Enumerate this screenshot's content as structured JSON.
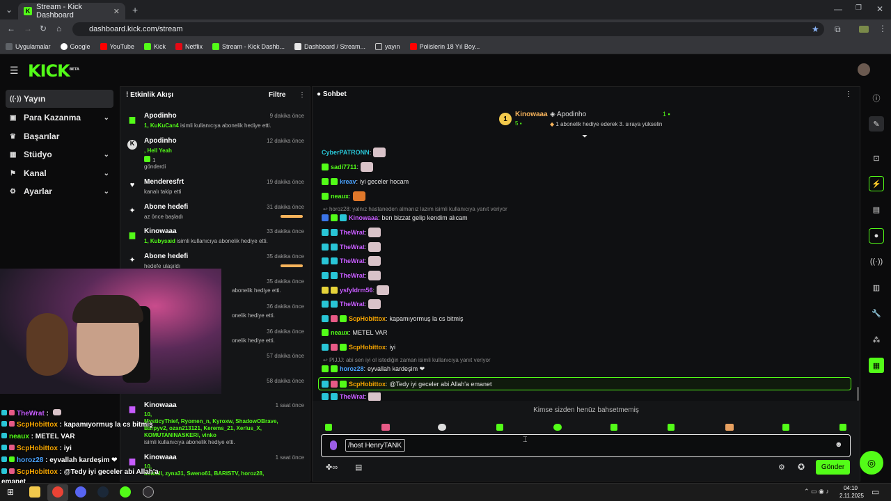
{
  "browser": {
    "tab_title": "Stream - Kick Dashboard",
    "url": "dashboard.kick.com/stream",
    "bookmarks": [
      "Uygulamalar",
      "Google",
      "YouTube",
      "Kick",
      "Netflix",
      "Stream - Kick Dashb...",
      "Dashboard / Stream...",
      "yayın",
      "Polislerin 18 Yıl Boy..."
    ]
  },
  "app": {
    "logo": "KICK",
    "logo_sup": "BETA"
  },
  "sidebar": {
    "items": [
      {
        "label": "Yayın",
        "icon": "((·))"
      },
      {
        "label": "Para Kazanma",
        "icon": "▣"
      },
      {
        "label": "Başarılar",
        "icon": "🏆"
      },
      {
        "label": "Stüdyo",
        "icon": "▦"
      },
      {
        "label": "Kanal",
        "icon": "⚑"
      },
      {
        "label": "Ayarlar",
        "icon": "⚙"
      }
    ]
  },
  "feed": {
    "title": "Etkinlik Akışı",
    "filter": "Filtre",
    "items": [
      {
        "name": "Apodinho",
        "time": "9 dakika önce",
        "line1_green": "1, KuKuCan4",
        "line1": " isimli kullanıcıya abonelik hediye etti."
      },
      {
        "name": "Apodinho",
        "time": "12 dakika önce",
        "line1_green": ", Hell Yeah",
        "line2": "1",
        "line3": "gönderdi"
      },
      {
        "name": "Menderesfrt",
        "time": "19 dakika önce",
        "line1": "kanalı takip etti"
      },
      {
        "name": "Abone hedefi",
        "time": "31 dakika önce",
        "line1": "az önce başladı"
      },
      {
        "name": "Kinowaaa",
        "time": "33 dakika önce",
        "line1_green": "1, Kubysaid",
        "line1": " isimli kullanıcıya abonelik hediye etti."
      },
      {
        "name": "Abone hedefi",
        "time": "35 dakika önce",
        "line1": "hedefe ulaşıldı"
      },
      {
        "time": "35 dakika önce",
        "line1": "abonelik hediye etti."
      },
      {
        "time": "36 dakika önce",
        "line1": "onelik hediye etti."
      },
      {
        "time": "36 dakika önce",
        "line1": "onelik hediye etti."
      },
      {
        "time": "57 dakika önce"
      },
      {
        "time": "58 dakika önce"
      },
      {
        "name": "Kinowaaa",
        "time": "1 saat önce",
        "line1_green": "10,",
        "line2_green": "MysticyThief, Ryomen_n, Kyroxw, ShadowOBrave,",
        "line3_green": "Barpyv2, ozan213121, Kerems_21, Xerlus_X,",
        "line4_green": "KOMUTANINASKERI, vinko",
        "line5": "isimli kullanıcıya abonelik hediye etti."
      },
      {
        "name": "Kinowaaa",
        "time": "1 saat önce",
        "line1_green": "10,",
        "line2_green": "abutall, zyna31, Sweno61, BARISTV, horoz28,"
      }
    ]
  },
  "chat": {
    "title": "Sohbet",
    "top_gifter": {
      "name": "Kinowaaa",
      "count": "5",
      "rank": "1"
    },
    "recent": {
      "name": "Apodinho",
      "count": "1",
      "text": "1 abonelik hediye ederek 3. sıraya yükselin"
    },
    "messages": [
      {
        "user": "CyberPATRONN",
        "color": "#29c5d6",
        "text": "",
        "emote": true
      },
      {
        "user": "sadi7711",
        "color": "#53fc18",
        "text": "",
        "emote": true
      },
      {
        "user": "kreav",
        "color": "#4aa3ff",
        "text": "iyi geceler hocam"
      },
      {
        "user": "neaux",
        "color": "#53fc18",
        "text": "",
        "emote": true
      },
      {
        "reply": "horoz28: yalnız hastaneden almanız lazım isimli kullanıcıya yanıt veriyor"
      },
      {
        "user": "Kinowaaa",
        "color": "#c75cff",
        "text": "ben bizzat gelip kendim alıcam"
      },
      {
        "user": "TheWrat",
        "color": "#c75cff",
        "text": "",
        "emote": true
      },
      {
        "user": "TheWrat",
        "color": "#c75cff",
        "text": "",
        "emote": true
      },
      {
        "user": "TheWrat",
        "color": "#c75cff",
        "text": "",
        "emote": true
      },
      {
        "user": "TheWrat",
        "color": "#c75cff",
        "text": "",
        "emote": true
      },
      {
        "user": "ysfyldrm56",
        "color": "#c75cff",
        "text": "",
        "emote": true
      },
      {
        "user": "TheWrat",
        "color": "#c75cff",
        "text": "",
        "emote": true
      },
      {
        "user": "ScpHobittox",
        "color": "#f7a600",
        "text": "kapamıyormuş la cs bitmiş"
      },
      {
        "user": "neaux",
        "color": "#53fc18",
        "text": "METEL VAR"
      },
      {
        "user": "ScpHobittox",
        "color": "#f7a600",
        "text": "iyi"
      },
      {
        "reply": "PIJJJ: abi sen iyi ol istediğin zaman isimli kullanıcıya yanıt veriyor"
      },
      {
        "user": "horoz28",
        "color": "#4aa3ff",
        "text": "eyvallah kardeşim ❤"
      },
      {
        "user": "ScpHobittox",
        "color": "#f7a600",
        "text": "@Tedy iyi geceler abi Allah'a emanet",
        "highlight": true
      },
      {
        "user": "TheWrat",
        "color": "#c75cff",
        "text": "",
        "emote": true
      }
    ],
    "mentions_empty": "Kimse sizden henüz bahsetmemiş",
    "input_value": "/host HenryTANK",
    "send_label": "Gönder"
  },
  "overlay": {
    "lines": [
      {
        "user": "TheWrat",
        "color": "#c75cff",
        "text": ""
      },
      {
        "user": "ScpHobittox",
        "color": "#f7a600",
        "text": "kapamıyormuş la cs bitmiş"
      },
      {
        "user": "neaux",
        "color": "#53fc18",
        "text": "METEL VAR"
      },
      {
        "user": "ScpHobittox",
        "color": "#f7a600",
        "text": "iyi"
      },
      {
        "user": "horoz28",
        "color": "#4aa3ff",
        "text": "eyvallah kardeşim ❤"
      },
      {
        "user": "ScpHobittox",
        "color": "#f7a600",
        "text": "@Tedy iyi geceler abi Allah'a"
      },
      {
        "user": "",
        "color": "#fff",
        "text": "emanet"
      }
    ]
  },
  "taskbar": {
    "time": "04:10",
    "date": "2.11.2025"
  }
}
